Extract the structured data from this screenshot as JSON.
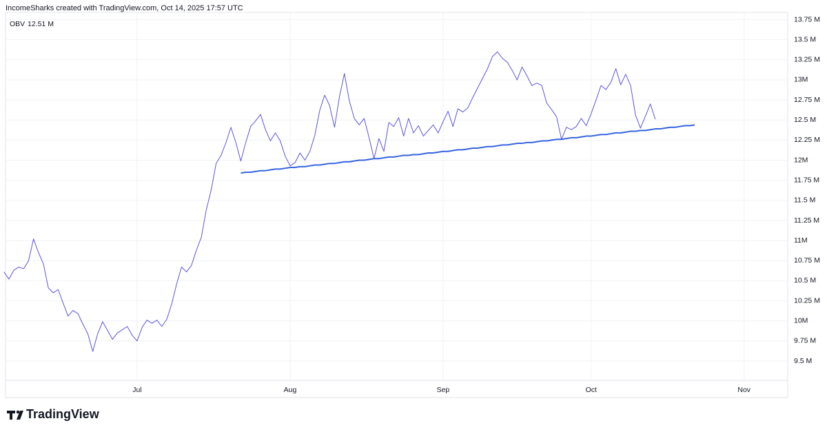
{
  "chart_data": {
    "type": "line",
    "title": "IncomeSharks created with TradingView.com, Oct 14, 2025 17:57 UTC",
    "logo_text": "TradingView",
    "categories": [
      null,
      null,
      null,
      null,
      null,
      null,
      null,
      null,
      null,
      null,
      null,
      null,
      null,
      null,
      null,
      null,
      null,
      null,
      null,
      null,
      null,
      null,
      null,
      null,
      null,
      null,
      null,
      "Jul",
      null,
      null,
      null,
      null,
      null,
      null,
      null,
      null,
      null,
      null,
      null,
      null,
      null,
      null,
      null,
      null,
      null,
      null,
      null,
      null,
      null,
      null,
      null,
      null,
      null,
      null,
      null,
      null,
      null,
      null,
      "Aug",
      null,
      null,
      null,
      null,
      null,
      null,
      null,
      null,
      null,
      null,
      null,
      null,
      null,
      null,
      null,
      null,
      null,
      null,
      null,
      null,
      null,
      null,
      null,
      null,
      null,
      null,
      null,
      null,
      null,
      null,
      "Sep",
      null,
      null,
      null,
      null,
      null,
      null,
      null,
      null,
      null,
      null,
      null,
      null,
      null,
      null,
      null,
      null,
      null,
      null,
      null,
      null,
      null,
      null,
      null,
      null,
      null,
      null,
      null,
      null,
      null,
      "Oct",
      null,
      null,
      null,
      null,
      null,
      null,
      null,
      null,
      null,
      null,
      null,
      null,
      null,
      null,
      null,
      null,
      null,
      null,
      null,
      null,
      null,
      null,
      null,
      null,
      null,
      null,
      null,
      null,
      null,
      null,
      "Nov",
      null,
      null,
      null,
      null,
      null,
      null,
      null,
      null
    ],
    "series": [
      {
        "name": "OBV",
        "color": "#5b52e0",
        "values": [
          10.61,
          10.52,
          10.63,
          10.67,
          10.65,
          10.75,
          11.02,
          10.85,
          10.71,
          10.41,
          10.35,
          10.39,
          10.22,
          10.06,
          10.13,
          10.09,
          9.96,
          9.84,
          9.62,
          9.84,
          9.99,
          9.88,
          9.77,
          9.85,
          9.89,
          9.93,
          9.82,
          9.75,
          9.92,
          10.01,
          9.97,
          10.01,
          9.93,
          10.02,
          10.21,
          10.46,
          10.67,
          10.61,
          10.69,
          10.88,
          11.04,
          11.38,
          11.63,
          11.96,
          12.06,
          12.22,
          12.41,
          12.22,
          11.99,
          12.22,
          12.42,
          12.49,
          12.57,
          12.38,
          12.24,
          12.34,
          12.24,
          12.05,
          11.93,
          11.97,
          12.09,
          12.0,
          12.11,
          12.31,
          12.62,
          12.81,
          12.68,
          12.41,
          12.79,
          13.08,
          12.74,
          12.52,
          12.44,
          12.52,
          12.28,
          12.02,
          12.27,
          12.11,
          12.47,
          12.42,
          12.53,
          12.3,
          12.52,
          12.34,
          12.43,
          12.3,
          12.37,
          12.44,
          12.34,
          12.48,
          12.61,
          12.42,
          12.64,
          12.6,
          12.65,
          12.78,
          12.9,
          13.02,
          13.14,
          13.29,
          13.35,
          13.27,
          13.22,
          13.12,
          13.0,
          13.16,
          13.05,
          12.93,
          12.96,
          12.93,
          12.71,
          12.63,
          12.54,
          12.26,
          12.41,
          12.38,
          12.42,
          12.52,
          12.43,
          12.58,
          12.75,
          12.93,
          12.88,
          12.97,
          13.14,
          12.94,
          13.07,
          12.93,
          12.56,
          12.4,
          12.55,
          12.7,
          12.51,
          null,
          null,
          null,
          null,
          null,
          null,
          null,
          null,
          null,
          null,
          null,
          null,
          null,
          null,
          null,
          null,
          null,
          null,
          null,
          null,
          null,
          null,
          null,
          null,
          null,
          null
        ]
      }
    ],
    "last_value_label": "12.51 M",
    "trendline": {
      "color": "#3563e0",
      "values": [
        null,
        null,
        null,
        null,
        null,
        null,
        null,
        null,
        null,
        null,
        null,
        null,
        null,
        null,
        null,
        null,
        null,
        null,
        null,
        null,
        null,
        null,
        null,
        null,
        null,
        null,
        null,
        null,
        null,
        null,
        null,
        null,
        null,
        null,
        null,
        null,
        null,
        null,
        null,
        null,
        null,
        null,
        null,
        null,
        null,
        null,
        null,
        null,
        11.84,
        11.85,
        11.85,
        11.86,
        11.87,
        11.87,
        11.88,
        11.89,
        11.89,
        11.9,
        11.91,
        11.91,
        11.92,
        11.92,
        11.93,
        11.94,
        11.94,
        11.95,
        11.96,
        11.96,
        11.97,
        11.98,
        11.98,
        11.99,
        12.0,
        12.0,
        12.01,
        12.02,
        12.02,
        12.03,
        12.04,
        12.04,
        12.05,
        12.06,
        12.06,
        12.07,
        12.07,
        12.08,
        12.09,
        12.09,
        12.1,
        12.11,
        12.11,
        12.12,
        12.13,
        12.13,
        12.14,
        12.15,
        12.15,
        12.16,
        12.17,
        12.17,
        12.18,
        12.19,
        12.19,
        12.2,
        12.21,
        12.21,
        12.22,
        12.22,
        12.23,
        12.24,
        12.24,
        12.25,
        12.26,
        12.26,
        12.27,
        12.28,
        12.28,
        12.29,
        12.3,
        12.3,
        12.31,
        12.32,
        12.32,
        12.33,
        12.34,
        12.34,
        12.35,
        12.36,
        12.36,
        12.37,
        12.37,
        12.38,
        12.39,
        12.39,
        12.4,
        12.41,
        12.41,
        12.42,
        12.43,
        12.43,
        12.44,
        null,
        null,
        null,
        null,
        null,
        null,
        null,
        null,
        null,
        null,
        null,
        null,
        null,
        null,
        null,
        null,
        null,
        null
      ]
    },
    "ylim": [
      9.26,
      13.84
    ],
    "yticks": [
      {
        "value": 9.5,
        "label": "9.5 M"
      },
      {
        "value": 9.75,
        "label": "9.75 M"
      },
      {
        "value": 10,
        "label": "10M"
      },
      {
        "value": 10.25,
        "label": "10.25 M"
      },
      {
        "value": 10.5,
        "label": "10.5 M"
      },
      {
        "value": 10.75,
        "label": "10.75 M"
      },
      {
        "value": 11,
        "label": "11M"
      },
      {
        "value": 11.25,
        "label": "11.25 M"
      },
      {
        "value": 11.5,
        "label": "11.5 M"
      },
      {
        "value": 11.75,
        "label": "11.75 M"
      },
      {
        "value": 12,
        "label": "12M"
      },
      {
        "value": 12.25,
        "label": "12.25 M"
      },
      {
        "value": 12.5,
        "label": "12.5 M"
      },
      {
        "value": 12.75,
        "label": "12.75 M"
      },
      {
        "value": 13,
        "label": "13M"
      },
      {
        "value": 13.25,
        "label": "13.25 M"
      },
      {
        "value": 13.5,
        "label": "13.5 M"
      },
      {
        "value": 13.75,
        "label": "13.75 M"
      }
    ],
    "grid": true
  }
}
